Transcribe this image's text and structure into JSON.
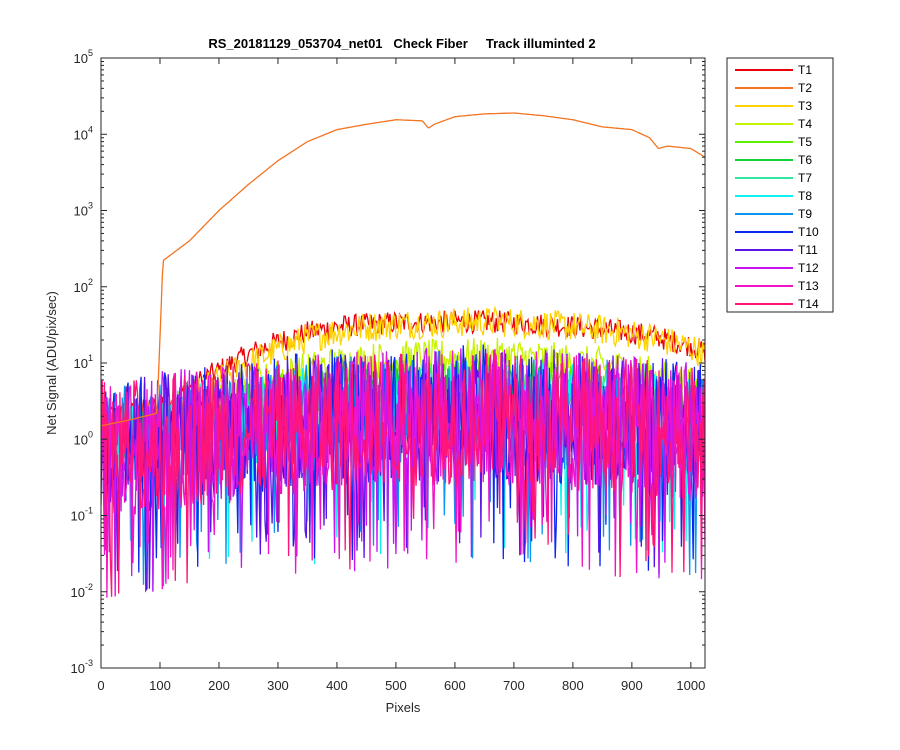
{
  "chart_data": {
    "type": "line",
    "title": "RS_20181129_053704_net01   Check Fiber     Track illuminted 2",
    "xlabel": "Pixels",
    "ylabel": "Net Signal (ADU/pix/sec)",
    "xlim": [
      0,
      1024
    ],
    "ylim": [
      0.001,
      100000
    ],
    "yscale": "log",
    "xticks": [
      "0",
      "100",
      "200",
      "300",
      "400",
      "500",
      "600",
      "700",
      "800",
      "900",
      "1000"
    ],
    "yticks": [
      {
        "base": "10",
        "exp": "-3"
      },
      {
        "base": "10",
        "exp": "-2"
      },
      {
        "base": "10",
        "exp": "-1"
      },
      {
        "base": "10",
        "exp": "0"
      },
      {
        "base": "10",
        "exp": "1"
      },
      {
        "base": "10",
        "exp": "2"
      },
      {
        "base": "10",
        "exp": "3"
      },
      {
        "base": "10",
        "exp": "4"
      },
      {
        "base": "10",
        "exp": "5"
      }
    ],
    "grid": false,
    "legend_position": "outside-right",
    "x": [
      0,
      50,
      95,
      105,
      150,
      200,
      250,
      300,
      350,
      400,
      450,
      500,
      545,
      555,
      565,
      600,
      650,
      700,
      750,
      800,
      850,
      900,
      930,
      945,
      960,
      1000,
      1024
    ],
    "series": [
      {
        "name": "T1",
        "color": "#e8000b",
        "noise": 0.15,
        "values": [
          2.0,
          2.2,
          2.6,
          3.2,
          5.0,
          8.0,
          13,
          19,
          25,
          30,
          32,
          34,
          34,
          34,
          34,
          35,
          35,
          34,
          32,
          30,
          28,
          25,
          23,
          22,
          20,
          17,
          14
        ]
      },
      {
        "name": "T2",
        "color": "#f37421",
        "noise": 0.0,
        "values": [
          1.5,
          1.8,
          2.2,
          220,
          400,
          1000,
          2200,
          4500,
          8000,
          11500,
          13500,
          15500,
          15000,
          12000,
          13500,
          17000,
          18500,
          19000,
          17500,
          15500,
          12500,
          11500,
          9000,
          6500,
          7000,
          6500,
          5000
        ]
      },
      {
        "name": "T3",
        "color": "#ffd200",
        "noise": 0.2,
        "values": [
          1.5,
          1.8,
          2.0,
          2.5,
          3.5,
          6.0,
          10,
          15,
          21,
          26,
          30,
          32,
          33,
          33,
          33,
          34,
          35,
          34,
          32,
          30,
          27,
          24,
          22,
          21,
          19,
          16,
          13
        ]
      },
      {
        "name": "T4",
        "color": "#c6f400",
        "noise": 0.25,
        "values": [
          1.2,
          1.4,
          1.6,
          1.8,
          2.5,
          3.5,
          5.0,
          6.5,
          8.0,
          9.5,
          10.5,
          11,
          11.5,
          11.5,
          11.5,
          12,
          12,
          12,
          11,
          10,
          9,
          8,
          7,
          6.5,
          6,
          5,
          4.5
        ]
      },
      {
        "name": "T5",
        "color": "#5cf000",
        "noise": 0.3,
        "values": [
          1.0,
          1.1,
          1.3,
          1.4,
          1.8,
          2.3,
          3.0,
          3.8,
          4.5,
          5.0,
          5.5,
          5.8,
          6.0,
          6.0,
          6.0,
          6.2,
          6.2,
          6.0,
          5.7,
          5.3,
          4.8,
          4.3,
          4.0,
          3.8,
          3.6,
          3.2,
          3.0
        ]
      },
      {
        "name": "T6",
        "color": "#16d23a",
        "noise": 0.35,
        "values": [
          1.0,
          1.1,
          1.2,
          1.3,
          1.6,
          2.0,
          2.4,
          2.8,
          3.2,
          3.6,
          3.9,
          4.0,
          4.2,
          4.2,
          4.2,
          4.4,
          4.4,
          4.3,
          4.1,
          3.8,
          3.5,
          3.2,
          3.0,
          2.9,
          2.8,
          2.5,
          2.3
        ]
      },
      {
        "name": "T7",
        "color": "#2fe8a0",
        "noise": 0.45,
        "values": [
          1.0,
          1.0,
          1.1,
          1.2,
          1.4,
          1.7,
          2.0,
          2.3,
          2.6,
          2.9,
          3.1,
          3.2,
          3.3,
          3.3,
          3.3,
          3.4,
          3.4,
          3.3,
          3.2,
          3.0,
          2.8,
          2.6,
          2.4,
          2.3,
          2.2,
          2.0,
          1.9
        ]
      },
      {
        "name": "T8",
        "color": "#0ff0f0",
        "noise": 0.6,
        "values": [
          0.9,
          1.0,
          1.0,
          1.1,
          1.3,
          1.5,
          1.7,
          2.0,
          2.2,
          2.4,
          2.6,
          2.7,
          2.8,
          2.8,
          2.8,
          2.9,
          2.9,
          2.8,
          2.7,
          2.5,
          2.3,
          2.1,
          2.0,
          1.9,
          1.8,
          1.7,
          1.6
        ]
      },
      {
        "name": "T9",
        "color": "#0a96f0",
        "noise": 0.75,
        "values": [
          0.9,
          0.9,
          1.0,
          1.0,
          1.2,
          1.4,
          1.6,
          1.8,
          2.0,
          2.2,
          2.3,
          2.4,
          2.5,
          2.5,
          2.5,
          2.6,
          2.6,
          2.5,
          2.4,
          2.2,
          2.0,
          1.9,
          1.8,
          1.7,
          1.6,
          1.5,
          1.4
        ]
      },
      {
        "name": "T10",
        "color": "#0a28f0",
        "noise": 0.9,
        "values": [
          0.8,
          0.9,
          0.9,
          1.0,
          1.1,
          1.3,
          1.5,
          1.7,
          1.8,
          2.0,
          2.1,
          2.2,
          2.2,
          2.2,
          2.2,
          2.3,
          2.3,
          2.2,
          2.1,
          2.0,
          1.9,
          1.7,
          1.6,
          1.6,
          1.5,
          1.4,
          1.3
        ]
      },
      {
        "name": "T11",
        "color": "#5a14e6",
        "noise": 0.9,
        "values": [
          0.8,
          0.9,
          0.9,
          1.0,
          1.1,
          1.2,
          1.4,
          1.6,
          1.7,
          1.9,
          2.0,
          2.1,
          2.1,
          2.1,
          2.1,
          2.2,
          2.2,
          2.1,
          2.0,
          1.9,
          1.8,
          1.6,
          1.5,
          1.5,
          1.4,
          1.3,
          1.3
        ]
      },
      {
        "name": "T12",
        "color": "#c814f0",
        "noise": 0.9,
        "values": [
          0.8,
          0.8,
          0.9,
          1.0,
          1.1,
          1.2,
          1.3,
          1.5,
          1.6,
          1.8,
          1.9,
          2.0,
          2.0,
          2.0,
          2.0,
          2.1,
          2.1,
          2.0,
          1.9,
          1.8,
          1.7,
          1.6,
          1.5,
          1.4,
          1.4,
          1.3,
          1.2
        ]
      },
      {
        "name": "T13",
        "color": "#f014c8",
        "noise": 0.9,
        "values": [
          0.8,
          0.8,
          0.9,
          0.9,
          1.0,
          1.1,
          1.3,
          1.4,
          1.6,
          1.7,
          1.8,
          1.9,
          1.9,
          1.9,
          1.9,
          2.0,
          2.0,
          1.9,
          1.8,
          1.7,
          1.6,
          1.5,
          1.4,
          1.4,
          1.3,
          1.2,
          1.2
        ]
      },
      {
        "name": "T14",
        "color": "#ff1478",
        "noise": 0.9,
        "values": [
          0.8,
          0.8,
          0.9,
          0.9,
          1.0,
          1.1,
          1.2,
          1.4,
          1.5,
          1.7,
          1.8,
          1.8,
          1.9,
          1.9,
          1.9,
          1.9,
          1.9,
          1.9,
          1.8,
          1.7,
          1.6,
          1.5,
          1.4,
          1.3,
          1.3,
          1.2,
          1.1
        ]
      }
    ]
  }
}
